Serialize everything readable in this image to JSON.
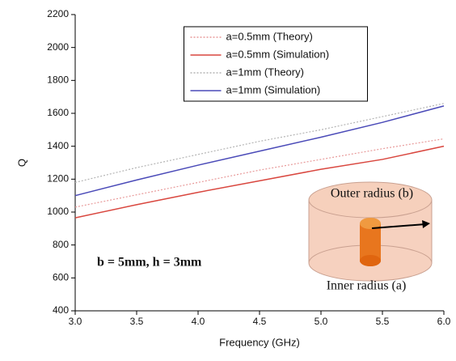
{
  "chart_data": {
    "type": "line",
    "x_label": "Frequency (GHz)",
    "y_label": "Q",
    "x": [
      3.0,
      3.5,
      4.0,
      4.5,
      5.0,
      5.5,
      6.0
    ],
    "series": [
      {
        "name": "a=0.5mm (Theory)",
        "color": "#e89a9a",
        "style": "dotted",
        "values": [
          1030,
          1105,
          1180,
          1255,
          1320,
          1385,
          1445
        ]
      },
      {
        "name": "a=0.5mm (Simulation)",
        "color": "#d9473f",
        "style": "solid",
        "values": [
          965,
          1045,
          1120,
          1190,
          1260,
          1320,
          1400
        ]
      },
      {
        "name": "a=1mm (Theory)",
        "color": "#b4b4b4",
        "style": "dotted",
        "values": [
          1180,
          1270,
          1350,
          1430,
          1500,
          1580,
          1660
        ]
      },
      {
        "name": "a=1mm (Simulation)",
        "color": "#4a4ab8",
        "style": "solid",
        "values": [
          1100,
          1195,
          1285,
          1370,
          1455,
          1545,
          1645
        ]
      }
    ],
    "xlim": [
      3.0,
      6.0
    ],
    "xticks": [
      {
        "value": 3,
        "label": "3.0"
      },
      3.5,
      {
        "value": 4,
        "label": "4.0"
      },
      4.5,
      {
        "value": 5,
        "label": "5.0"
      },
      5.5,
      {
        "value": 6,
        "label": "6.0"
      }
    ],
    "ylim": [
      400,
      2200
    ],
    "yticks": [
      400,
      600,
      800,
      1000,
      1200,
      1400,
      1600,
      1800,
      2000,
      2200
    ],
    "legend": "upper center",
    "annotations": [
      "b = 5mm, h = 3mm",
      "Outer radius (b)",
      "Inner radius (a)"
    ]
  }
}
